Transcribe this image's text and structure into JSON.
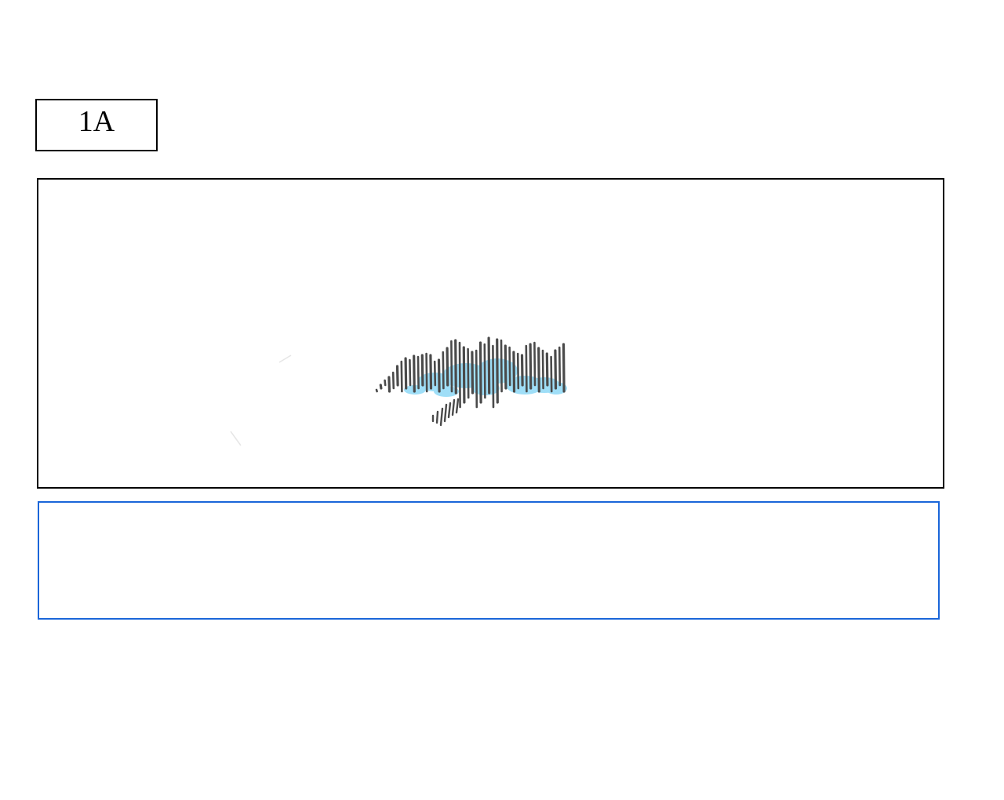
{
  "panel": {
    "label": "1A"
  },
  "notes": {
    "value": "",
    "placeholder": ""
  },
  "colors": {
    "frame_border": "#000000",
    "notes_border": "#1a66d9",
    "sketch_stroke": "#4a4a4a",
    "sketch_wash": "#7fd4f5"
  }
}
